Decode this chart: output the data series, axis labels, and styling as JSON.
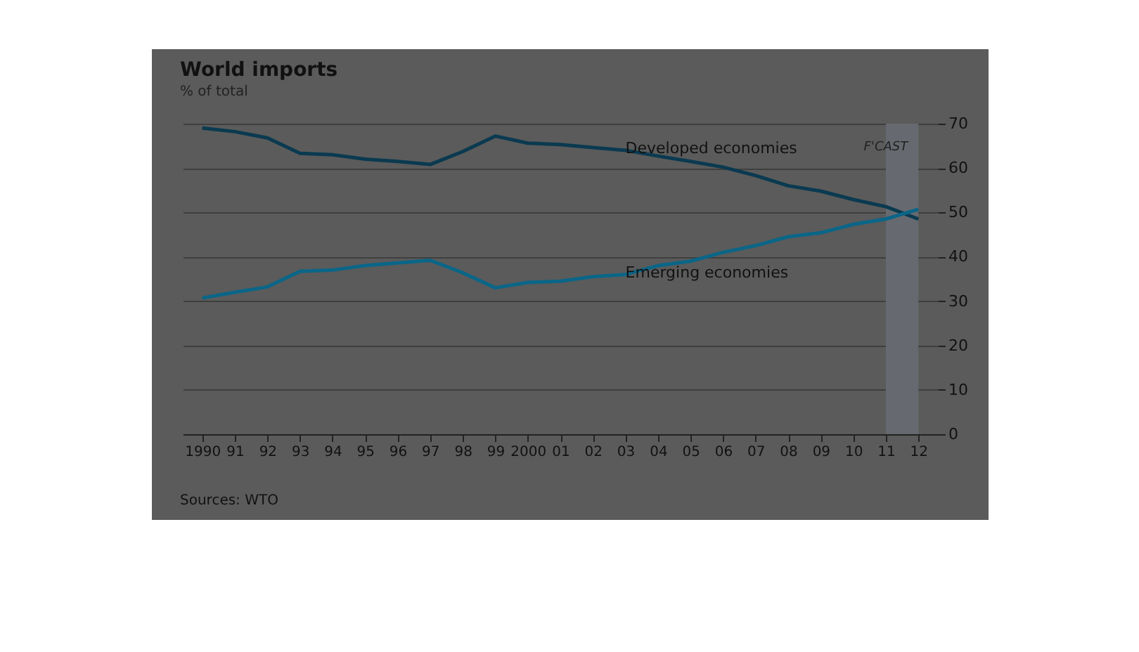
{
  "chart_data": {
    "type": "line",
    "title": "World imports",
    "subtitle": "% of total",
    "x": [
      1990,
      1991,
      1992,
      1993,
      1994,
      1995,
      1996,
      1997,
      1998,
      1999,
      2000,
      2001,
      2002,
      2003,
      2004,
      2005,
      2006,
      2007,
      2008,
      2009,
      2010,
      2011,
      2012
    ],
    "series": [
      {
        "name": "Developed economies",
        "color": "#0a3a50",
        "values": [
          69,
          68.2,
          66.8,
          63.3,
          63,
          62,
          61.5,
          60.8,
          63.7,
          67.2,
          65.6,
          65.3,
          64.6,
          64,
          62.7,
          61.5,
          60.2,
          58.3,
          56,
          54.8,
          52.9,
          51.3,
          48.5
        ]
      },
      {
        "name": "Emerging economies",
        "color": "#0a6688",
        "values": [
          30.7,
          32,
          33.2,
          36.7,
          37,
          38,
          38.6,
          39.2,
          36.4,
          33,
          34.2,
          34.5,
          35.5,
          36,
          38,
          39,
          41,
          42.5,
          44.5,
          45.4,
          47.3,
          48.5,
          50.7
        ]
      }
    ],
    "xlim": [
      1989.4,
      2012.6
    ],
    "xticks": [
      {
        "value": 1990,
        "label": "1990"
      },
      {
        "value": 1991,
        "label": "91"
      },
      {
        "value": 1992,
        "label": "92"
      },
      {
        "value": 1993,
        "label": "93"
      },
      {
        "value": 1994,
        "label": "94"
      },
      {
        "value": 1995,
        "label": "95"
      },
      {
        "value": 1996,
        "label": "96"
      },
      {
        "value": 1997,
        "label": "97"
      },
      {
        "value": 1998,
        "label": "98"
      },
      {
        "value": 1999,
        "label": "99"
      },
      {
        "value": 2000,
        "label": "2000"
      },
      {
        "value": 2001,
        "label": "01"
      },
      {
        "value": 2002,
        "label": "02"
      },
      {
        "value": 2003,
        "label": "03"
      },
      {
        "value": 2004,
        "label": "04"
      },
      {
        "value": 2005,
        "label": "05"
      },
      {
        "value": 2006,
        "label": "06"
      },
      {
        "value": 2007,
        "label": "07"
      },
      {
        "value": 2008,
        "label": "08"
      },
      {
        "value": 2009,
        "label": "09"
      },
      {
        "value": 2010,
        "label": "10"
      },
      {
        "value": 2011,
        "label": "11"
      },
      {
        "value": 2012,
        "label": "12"
      }
    ],
    "ylim": [
      0,
      70
    ],
    "yticks": [
      0,
      10,
      20,
      30,
      40,
      50,
      60,
      70
    ],
    "grid": "y",
    "legend": false,
    "marker": "none",
    "line_style": "solid",
    "bands": [
      {
        "axis": "x",
        "from": 2011,
        "to": 2012,
        "label": "F'CAST",
        "color": "#666a70"
      }
    ],
    "annotations": [
      "Sources: WTO"
    ]
  }
}
